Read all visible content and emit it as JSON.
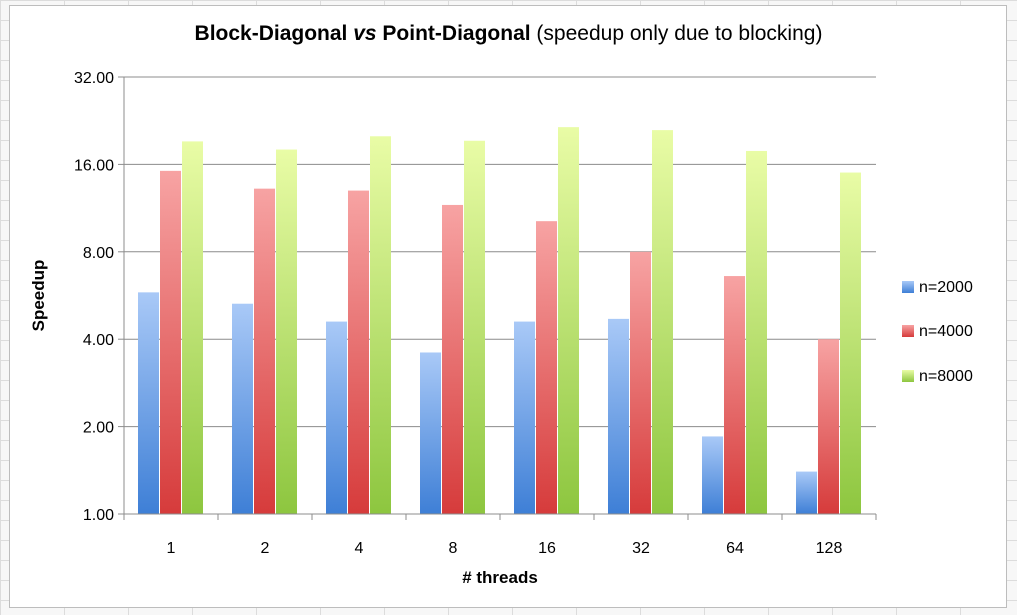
{
  "chart_data": {
    "type": "bar",
    "title_parts": [
      {
        "text": "Block-Diagonal ",
        "style": "bold"
      },
      {
        "text": "vs",
        "style": "bold-italic"
      },
      {
        "text": " Point-Diagonal",
        "style": "bold"
      },
      {
        "text": " (speedup only due to blocking)",
        "style": "normal"
      }
    ],
    "xlabel": "# threads",
    "ylabel": "Speedup",
    "y_scale": "log2",
    "ylim": [
      1,
      32
    ],
    "y_ticks": [
      "1.00",
      "2.00",
      "4.00",
      "8.00",
      "16.00",
      "32.00"
    ],
    "categories": [
      "1",
      "2",
      "4",
      "8",
      "16",
      "32",
      "64",
      "128"
    ],
    "grid": "horizontal",
    "legend_position": "right",
    "series": [
      {
        "name": "n=2000",
        "color": "#4f81bd",
        "values": [
          5.8,
          5.3,
          4.6,
          3.6,
          4.6,
          4.7,
          1.85,
          1.4
        ]
      },
      {
        "name": "n=4000",
        "color": "#e05252",
        "values": [
          15.2,
          13.2,
          13.0,
          11.6,
          10.2,
          8.0,
          6.6,
          4.0
        ]
      },
      {
        "name": "n=8000",
        "color": "#9bcc3c",
        "values": [
          19.2,
          18.0,
          20.0,
          19.3,
          21.5,
          21.0,
          17.8,
          15.0
        ]
      }
    ]
  }
}
